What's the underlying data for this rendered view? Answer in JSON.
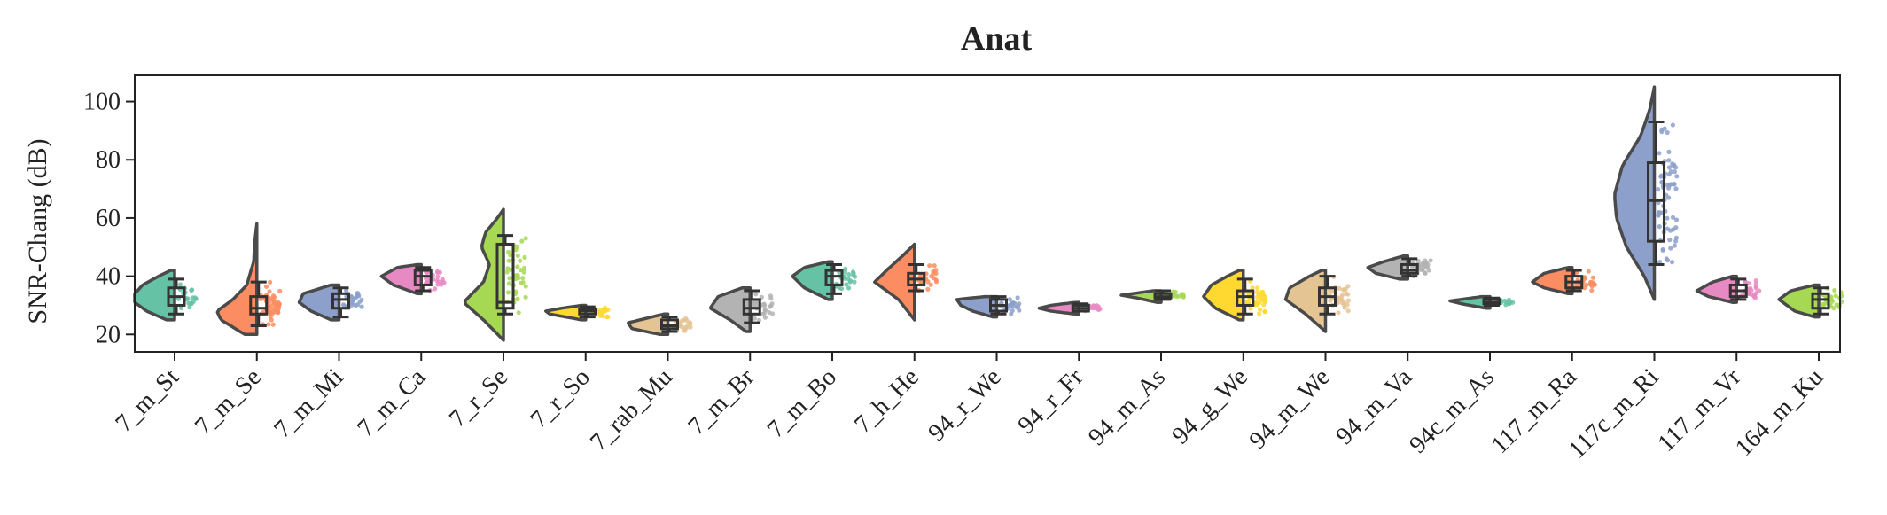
{
  "chart_data": {
    "type": "violin",
    "title": "Anat",
    "ylabel": "SNR-Chang (dB)",
    "xlabel": "",
    "ylim": [
      14,
      109
    ],
    "yticks": [
      20,
      40,
      60,
      80,
      100
    ],
    "grid": false,
    "categories": [
      "7_m_St",
      "7_m_Se",
      "7_m_Mi",
      "7_m_Ca",
      "7_r_Se",
      "7_r_So",
      "7_rab_Mu",
      "7_m_Br",
      "7_m_Bo",
      "7_h_He",
      "94_r_We",
      "94_r_Fr",
      "94_m_As",
      "94_g_We",
      "94_m_We",
      "94_m_Va",
      "94c_m_As",
      "117_m_Ra",
      "117c_m_Ri",
      "117_m_Vr",
      "164_m_Ku"
    ],
    "series": [
      {
        "label": "7_m_St",
        "color": "#66c2a5",
        "min": 25,
        "max": 42,
        "q1": 30,
        "median": 33,
        "q3": 36,
        "whisker_low": 27,
        "whisker_high": 39,
        "n": 20,
        "density": [
          [
            25,
            0.2
          ],
          [
            28,
            0.7
          ],
          [
            31,
            1.0
          ],
          [
            34,
            1.0
          ],
          [
            37,
            0.8
          ],
          [
            40,
            0.4
          ],
          [
            42,
            0.1
          ]
        ]
      },
      {
        "label": "7_m_Se",
        "color": "#fc8d62",
        "min": 20,
        "max": 58,
        "q1": 27,
        "median": 29,
        "q3": 33,
        "whisker_low": 23,
        "whisker_high": 38,
        "n": 60,
        "density": [
          [
            20,
            0.3
          ],
          [
            25,
            0.9
          ],
          [
            28,
            1.0
          ],
          [
            32,
            0.6
          ],
          [
            37,
            0.25
          ],
          [
            45,
            0.08
          ],
          [
            52,
            0.05
          ],
          [
            58,
            0.0
          ]
        ]
      },
      {
        "label": "7_m_Mi",
        "color": "#8da0cb",
        "min": 25,
        "max": 37,
        "q1": 29,
        "median": 32,
        "q3": 34,
        "whisker_low": 26,
        "whisker_high": 36,
        "n": 30,
        "density": [
          [
            25,
            0.2
          ],
          [
            28,
            0.7
          ],
          [
            31,
            1.0
          ],
          [
            34,
            0.9
          ],
          [
            37,
            0.2
          ]
        ]
      },
      {
        "label": "7_m_Ca",
        "color": "#e78ac3",
        "min": 34,
        "max": 44,
        "q1": 37,
        "median": 40,
        "q3": 42,
        "whisker_low": 35,
        "whisker_high": 43,
        "n": 25,
        "density": [
          [
            34,
            0.1
          ],
          [
            37,
            0.7
          ],
          [
            40,
            1.0
          ],
          [
            43,
            0.6
          ],
          [
            44,
            0.1
          ]
        ]
      },
      {
        "label": "7_r_Se",
        "color": "#a6d854",
        "min": 18,
        "max": 63,
        "q1": 29,
        "median": 31,
        "q3": 51,
        "whisker_low": 27,
        "whisker_high": 54,
        "n": 40,
        "density": [
          [
            18,
            0.0
          ],
          [
            25,
            0.5
          ],
          [
            31,
            1.0
          ],
          [
            38,
            0.5
          ],
          [
            44,
            0.35
          ],
          [
            50,
            0.55
          ],
          [
            55,
            0.45
          ],
          [
            60,
            0.15
          ],
          [
            63,
            0.0
          ]
        ]
      },
      {
        "label": "7_r_So",
        "color": "#ffd92f",
        "min": 25,
        "max": 30,
        "q1": 27,
        "median": 28,
        "q3": 28.5,
        "whisker_low": 26,
        "whisker_high": 29.5,
        "n": 25,
        "density": [
          [
            25,
            0.1
          ],
          [
            27,
            0.9
          ],
          [
            28,
            1.0
          ],
          [
            29,
            0.6
          ],
          [
            30,
            0.1
          ]
        ]
      },
      {
        "label": "7_rab_Mu",
        "color": "#e5c494",
        "min": 20,
        "max": 27,
        "q1": 22,
        "median": 23,
        "q3": 25,
        "whisker_low": 21,
        "whisker_high": 26,
        "n": 25,
        "density": [
          [
            20,
            0.2
          ],
          [
            22,
            0.9
          ],
          [
            24,
            1.0
          ],
          [
            26,
            0.4
          ],
          [
            27,
            0.1
          ]
        ]
      },
      {
        "label": "7_m_Br",
        "color": "#b3b3b3",
        "min": 21,
        "max": 36,
        "q1": 27,
        "median": 29,
        "q3": 32,
        "whisker_low": 24,
        "whisker_high": 35,
        "n": 30,
        "density": [
          [
            21,
            0.1
          ],
          [
            25,
            0.5
          ],
          [
            29,
            1.0
          ],
          [
            33,
            0.8
          ],
          [
            36,
            0.2
          ]
        ]
      },
      {
        "label": "7_m_Bo",
        "color": "#66c2a5",
        "min": 32,
        "max": 45,
        "q1": 37,
        "median": 40,
        "q3": 42,
        "whisker_low": 34,
        "whisker_high": 44,
        "n": 25,
        "density": [
          [
            32,
            0.1
          ],
          [
            36,
            0.7
          ],
          [
            40,
            1.0
          ],
          [
            43,
            0.7
          ],
          [
            45,
            0.1
          ]
        ]
      },
      {
        "label": "7_h_He",
        "color": "#fc8d62",
        "min": 25,
        "max": 51,
        "q1": 37,
        "median": 39,
        "q3": 41,
        "whisker_low": 35,
        "whisker_high": 44,
        "n": 25,
        "density": [
          [
            25,
            0.0
          ],
          [
            32,
            0.4
          ],
          [
            38,
            1.0
          ],
          [
            42,
            0.7
          ],
          [
            47,
            0.3
          ],
          [
            51,
            0.0
          ]
        ]
      },
      {
        "label": "94_r_We",
        "color": "#8da0cb",
        "min": 26,
        "max": 33,
        "q1": 28,
        "median": 30,
        "q3": 32,
        "whisker_low": 27,
        "whisker_high": 33,
        "n": 25,
        "density": [
          [
            26,
            0.1
          ],
          [
            28,
            0.6
          ],
          [
            30,
            0.9
          ],
          [
            32,
            1.0
          ],
          [
            33,
            0.3
          ]
        ]
      },
      {
        "label": "94_r_Fr",
        "color": "#e78ac3",
        "min": 27,
        "max": 31,
        "q1": 28,
        "median": 29,
        "q3": 30,
        "whisker_low": 28,
        "whisker_high": 30.5,
        "n": 25,
        "density": [
          [
            27,
            0.1
          ],
          [
            28,
            0.7
          ],
          [
            29,
            1.0
          ],
          [
            30,
            0.7
          ],
          [
            31,
            0.1
          ]
        ]
      },
      {
        "label": "94_m_As",
        "color": "#a6d854",
        "min": 31,
        "max": 35,
        "q1": 32.5,
        "median": 33,
        "q3": 34,
        "whisker_low": 32,
        "whisker_high": 35,
        "n": 20,
        "density": [
          [
            31,
            0.1
          ],
          [
            32.5,
            0.6
          ],
          [
            33.5,
            1.0
          ],
          [
            35,
            0.2
          ]
        ]
      },
      {
        "label": "94_g_We",
        "color": "#ffd92f",
        "min": 25,
        "max": 42,
        "q1": 30,
        "median": 33,
        "q3": 35,
        "whisker_low": 27,
        "whisker_high": 39,
        "n": 40,
        "density": [
          [
            25,
            0.1
          ],
          [
            29,
            0.7
          ],
          [
            33,
            1.0
          ],
          [
            37,
            0.8
          ],
          [
            40,
            0.4
          ],
          [
            42,
            0.1
          ]
        ]
      },
      {
        "label": "94_m_We",
        "color": "#e5c494",
        "min": 21,
        "max": 42,
        "q1": 30,
        "median": 33,
        "q3": 36,
        "whisker_low": 27,
        "whisker_high": 40,
        "n": 40,
        "density": [
          [
            21,
            0.0
          ],
          [
            27,
            0.5
          ],
          [
            32,
            1.0
          ],
          [
            36,
            0.9
          ],
          [
            40,
            0.4
          ],
          [
            42,
            0.1
          ]
        ]
      },
      {
        "label": "94_m_Va",
        "color": "#b3b3b3",
        "min": 39,
        "max": 47,
        "q1": 41,
        "median": 42,
        "q3": 44,
        "whisker_low": 40,
        "whisker_high": 46,
        "n": 30,
        "density": [
          [
            39,
            0.2
          ],
          [
            41,
            0.8
          ],
          [
            43,
            1.0
          ],
          [
            45,
            0.6
          ],
          [
            47,
            0.1
          ]
        ]
      },
      {
        "label": "94c_m_As",
        "color": "#66c2a5",
        "min": 29,
        "max": 33,
        "q1": 30.5,
        "median": 31,
        "q3": 32,
        "whisker_low": 30,
        "whisker_high": 32.5,
        "n": 20,
        "density": [
          [
            29,
            0.1
          ],
          [
            30.5,
            0.7
          ],
          [
            31.5,
            1.0
          ],
          [
            33,
            0.2
          ]
        ]
      },
      {
        "label": "117_m_Ra",
        "color": "#fc8d62",
        "min": 34,
        "max": 43,
        "q1": 36,
        "median": 38,
        "q3": 40,
        "whisker_low": 35,
        "whisker_high": 42,
        "n": 30,
        "density": [
          [
            34,
            0.1
          ],
          [
            36,
            0.7
          ],
          [
            38,
            1.0
          ],
          [
            41,
            0.7
          ],
          [
            43,
            0.1
          ]
        ]
      },
      {
        "label": "117c_m_Ri",
        "color": "#8da0cb",
        "min": 32,
        "max": 105,
        "q1": 52,
        "median": 66,
        "q3": 79,
        "whisker_low": 44,
        "whisker_high": 93,
        "n": 70,
        "density": [
          [
            32,
            0.0
          ],
          [
            40,
            0.25
          ],
          [
            50,
            0.7
          ],
          [
            60,
            0.95
          ],
          [
            68,
            1.0
          ],
          [
            78,
            0.8
          ],
          [
            88,
            0.35
          ],
          [
            97,
            0.12
          ],
          [
            105,
            0.0
          ]
        ]
      },
      {
        "label": "117_m_Vr",
        "color": "#e78ac3",
        "min": 31,
        "max": 40,
        "q1": 33,
        "median": 35,
        "q3": 37,
        "whisker_low": 32,
        "whisker_high": 39,
        "n": 25,
        "density": [
          [
            31,
            0.1
          ],
          [
            33,
            0.7
          ],
          [
            35,
            1.0
          ],
          [
            38,
            0.6
          ],
          [
            40,
            0.1
          ]
        ]
      },
      {
        "label": "164_m_Ku",
        "color": "#a6d854",
        "min": 26,
        "max": 37,
        "q1": 29,
        "median": 32,
        "q3": 34,
        "whisker_low": 27,
        "whisker_high": 36,
        "n": 30,
        "density": [
          [
            26,
            0.1
          ],
          [
            28,
            0.6
          ],
          [
            32,
            1.0
          ],
          [
            35,
            0.7
          ],
          [
            37,
            0.1
          ]
        ]
      }
    ]
  }
}
